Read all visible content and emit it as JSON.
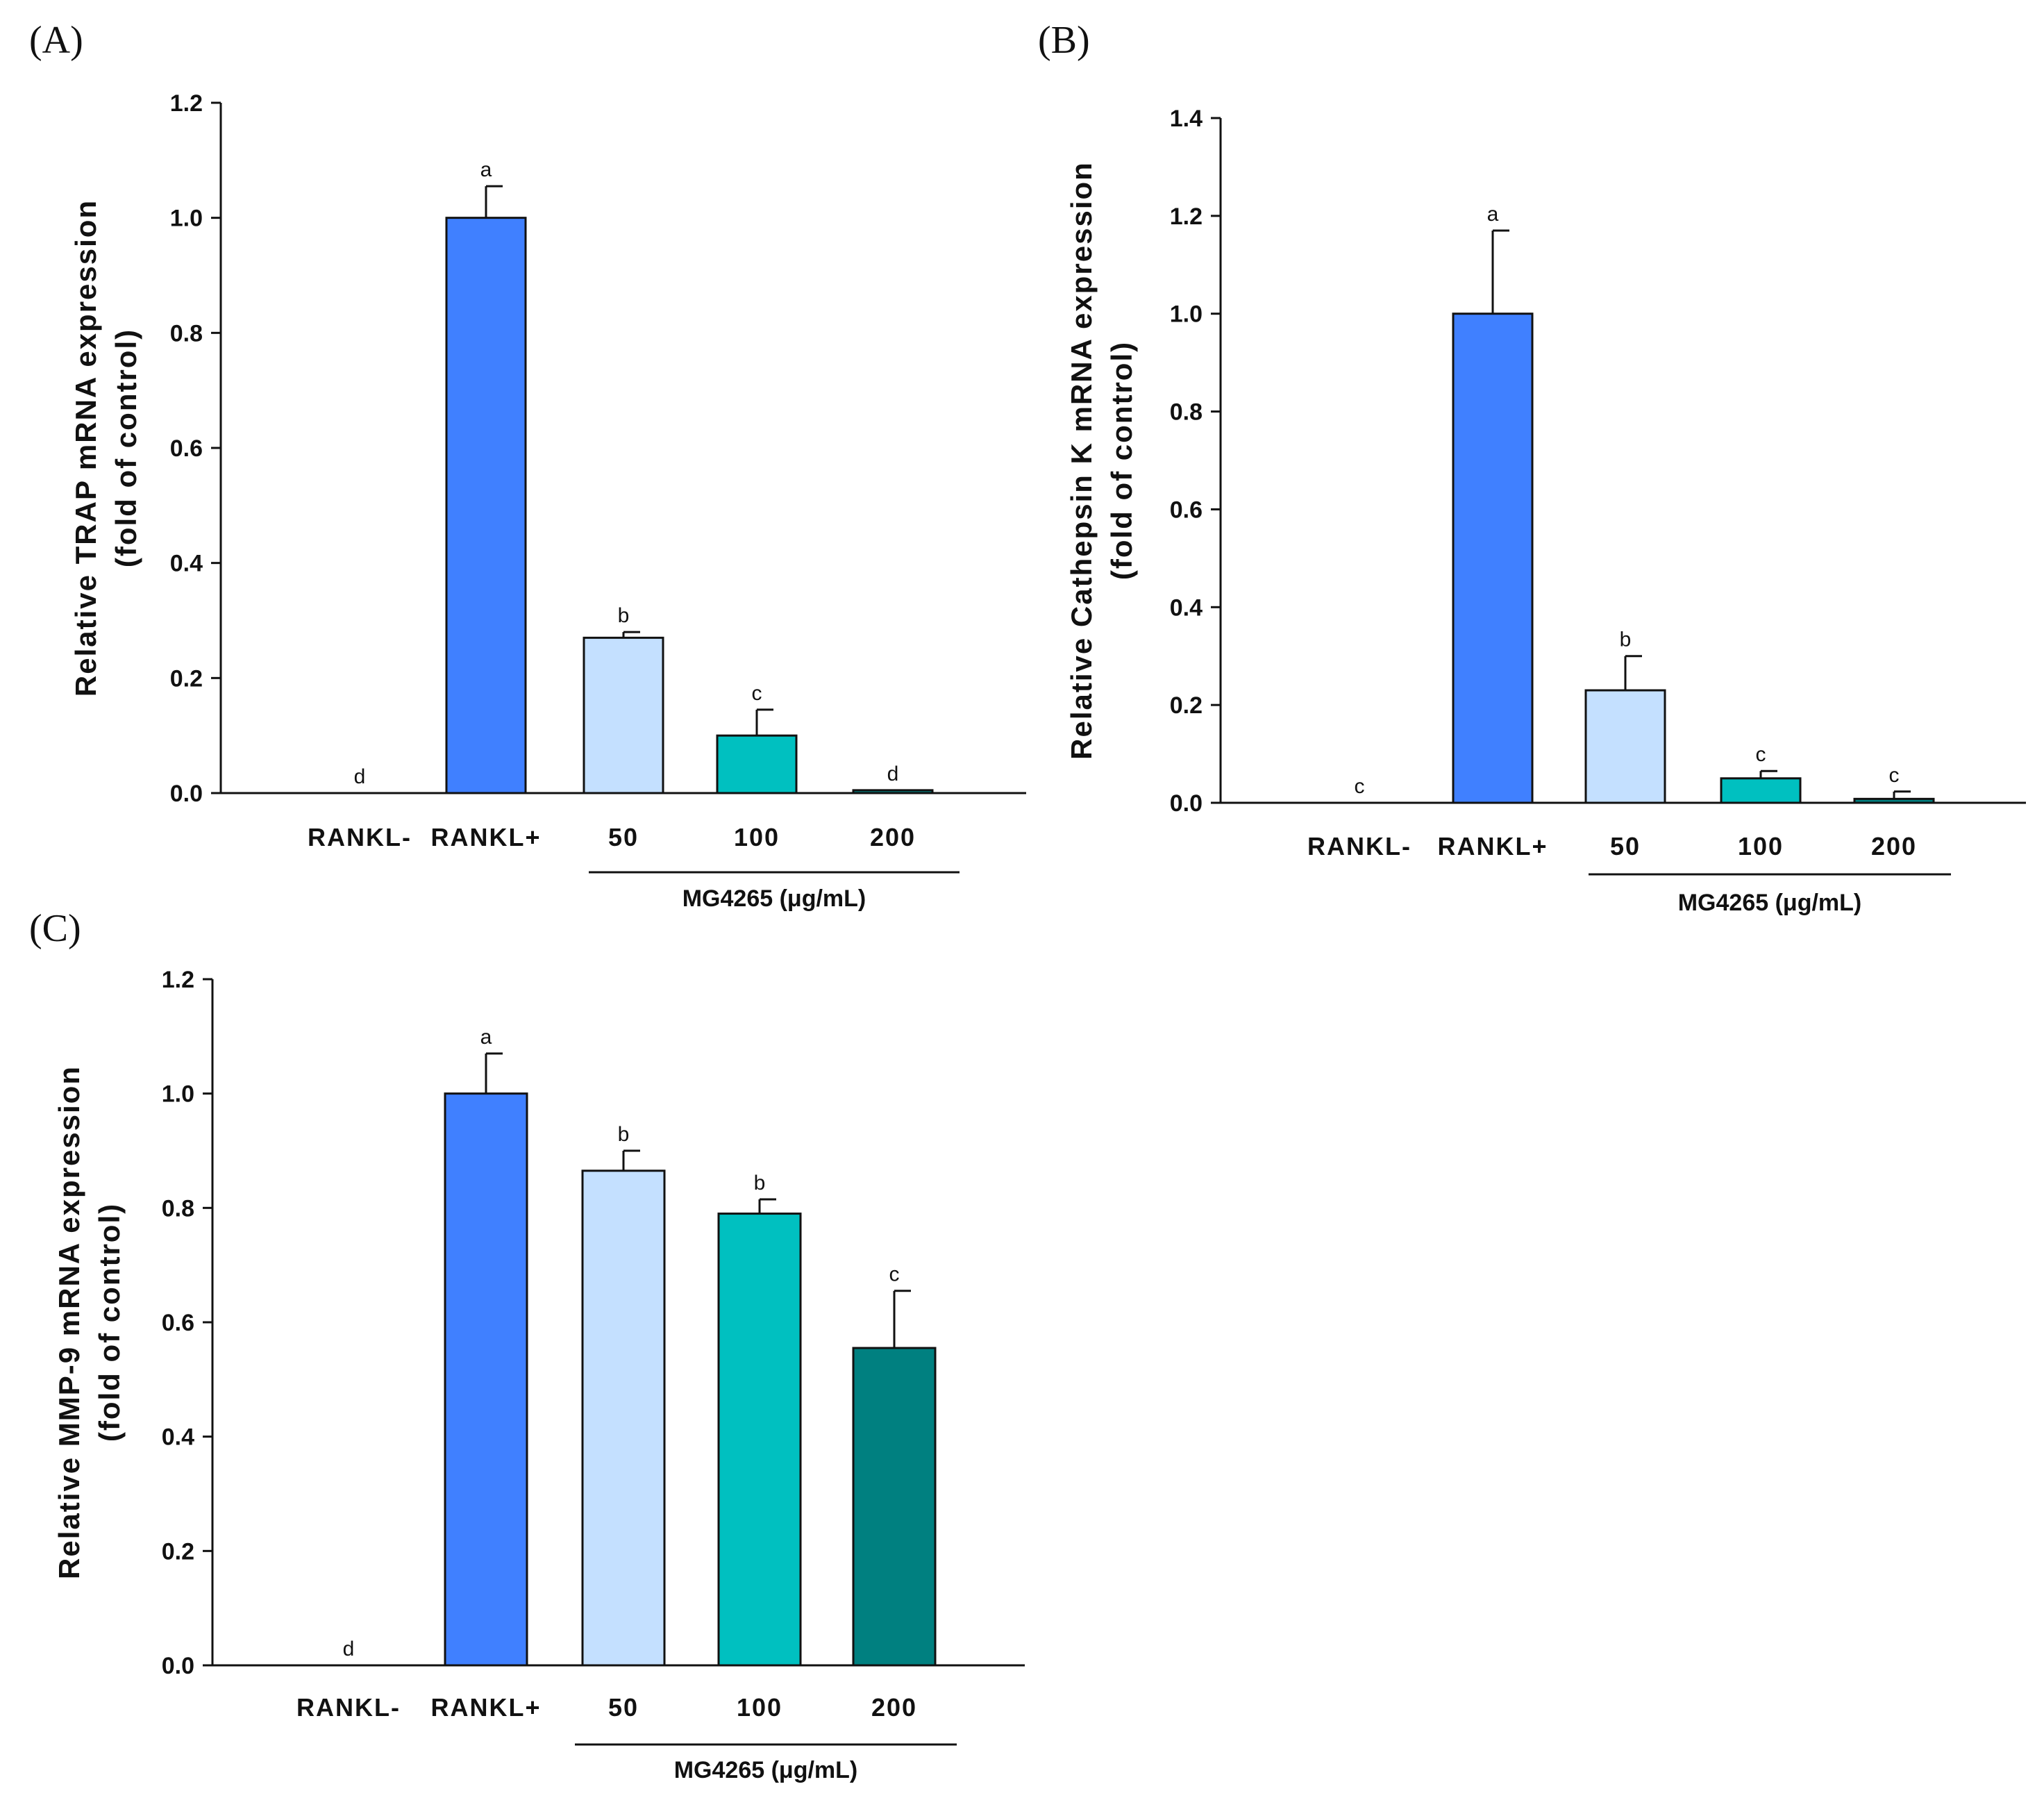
{
  "colors": {
    "RANKL-": "#ffffff",
    "RANKL+": "#4080ff",
    "50": "#c4e0ff",
    "100": "#00c0c0",
    "200": "#008080"
  },
  "chart_data": [
    {
      "panel": "(A)",
      "type": "bar",
      "ylabel_line1": "Relative TRAP mRNA expression",
      "ylabel_line2": "(fold of control)",
      "ylim": [
        0,
        1.2
      ],
      "yticks": [
        "0.0",
        "0.2",
        "0.4",
        "0.6",
        "0.8",
        "1.0",
        "1.2"
      ],
      "categories": [
        "RANKL-",
        "RANKL+",
        "50",
        "100",
        "200"
      ],
      "values": [
        0,
        1.0,
        0.27,
        0.1,
        0.005
      ],
      "errors": [
        0,
        0.055,
        0.01,
        0.045,
        0
      ],
      "significance": [
        "d",
        "a",
        "b",
        "c",
        "d"
      ],
      "group_label": "MG4265 (μg/mL)"
    },
    {
      "panel": "(B)",
      "type": "bar",
      "ylabel_line1": "Relative Cathepsin K mRNA expression",
      "ylabel_line2": "(fold of control)",
      "ylim": [
        0,
        1.4
      ],
      "yticks": [
        "0.0",
        "0.2",
        "0.4",
        "0.6",
        "0.8",
        "1.0",
        "1.2",
        "1.4"
      ],
      "categories": [
        "RANKL-",
        "RANKL+",
        "50",
        "100",
        "200"
      ],
      "values": [
        0,
        1.0,
        0.23,
        0.05,
        0.008
      ],
      "errors": [
        0,
        0.17,
        0.07,
        0.015,
        0.015
      ],
      "significance": [
        "c",
        "a",
        "b",
        "c",
        "c"
      ],
      "group_label": "MG4265 (μg/mL)"
    },
    {
      "panel": "(C)",
      "type": "bar",
      "ylabel_line1": "Relative MMP-9 mRNA expression",
      "ylabel_line2": "(fold of control)",
      "ylim": [
        0,
        1.2
      ],
      "yticks": [
        "0.0",
        "0.2",
        "0.4",
        "0.6",
        "0.8",
        "1.0",
        "1.2"
      ],
      "categories": [
        "RANKL-",
        "RANKL+",
        "50",
        "100",
        "200"
      ],
      "values": [
        0,
        1.0,
        0.865,
        0.79,
        0.555
      ],
      "errors": [
        0,
        0.07,
        0.035,
        0.025,
        0.1
      ],
      "significance": [
        "d",
        "a",
        "b",
        "b",
        "c"
      ],
      "group_label": "MG4265 (μg/mL)"
    }
  ]
}
